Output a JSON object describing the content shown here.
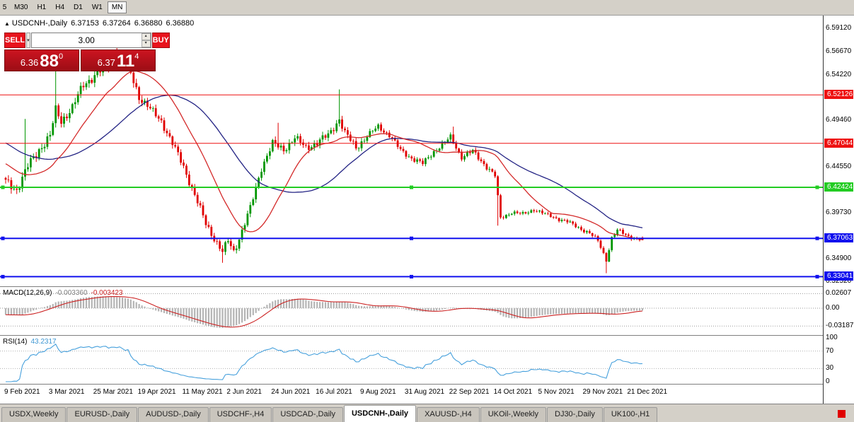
{
  "toolbar": {
    "periods": [
      {
        "label": "5",
        "active": false,
        "clipped": true
      },
      {
        "label": "M30",
        "active": false
      },
      {
        "label": "H1",
        "active": false
      },
      {
        "label": "H4",
        "active": false
      },
      {
        "label": "D1",
        "active": false
      },
      {
        "label": "W1",
        "active": false
      },
      {
        "label": "MN",
        "active": true
      }
    ]
  },
  "icons": {
    "direction_arrow": "▲",
    "dropdown_arrow": "▾",
    "spinner_up": "▴",
    "spinner_down": "▾"
  },
  "chart": {
    "header": {
      "symbol": "USDCNH-,Daily",
      "ohlc": [
        "6.37153",
        "6.37264",
        "6.36880",
        "6.36880"
      ]
    },
    "trade_panel": {
      "sell_label": "SELL",
      "buy_label": "BUY",
      "volume": "3.00",
      "sell_price": {
        "big": "6.36",
        "pips": "88",
        "point": "0"
      },
      "buy_price": {
        "big": "6.37",
        "pips": "11",
        "point": "4"
      }
    },
    "y_axis": {
      "min": 6.3203,
      "max": 6.6046,
      "ticks": [
        "6.59120",
        "6.56670",
        "6.54220",
        "6.49460",
        "6.44550",
        "6.39730",
        "6.34900",
        "6.32520"
      ]
    },
    "levels": [
      {
        "value": 6.52126,
        "label": "6.52126",
        "color": "#ee1111",
        "width": 1,
        "handle": false
      },
      {
        "value": 6.47044,
        "label": "6.47044",
        "color": "#ee1111",
        "width": 1,
        "handle": false
      },
      {
        "value": 6.42424,
        "label": "6.42424",
        "color": "#22cc22",
        "width": 2,
        "handle": true
      },
      {
        "value": 6.37063,
        "label": "6.37063",
        "color": "#1111ee",
        "width": 2,
        "handle": true
      },
      {
        "value": 6.33041,
        "label": "6.33041",
        "color": "#1111ee",
        "width": 2,
        "handle": true
      }
    ],
    "x_axis": [
      {
        "text": "9 Feb 2021",
        "index": 0
      },
      {
        "text": "3 Mar 2021",
        "index": 16
      },
      {
        "text": "25 Mar 2021",
        "index": 32
      },
      {
        "text": "19 Apr 2021",
        "index": 48
      },
      {
        "text": "11 May 2021",
        "index": 64
      },
      {
        "text": "2 Jun 2021",
        "index": 80
      },
      {
        "text": "24 Jun 2021",
        "index": 96
      },
      {
        "text": "16 Jul 2021",
        "index": 112
      },
      {
        "text": "9 Aug 2021",
        "index": 128
      },
      {
        "text": "31 Aug 2021",
        "index": 144
      },
      {
        "text": "22 Sep 2021",
        "index": 160
      },
      {
        "text": "14 Oct 2021",
        "index": 176
      },
      {
        "text": "5 Nov 2021",
        "index": 192
      },
      {
        "text": "29 Nov 2021",
        "index": 208
      },
      {
        "text": "21 Dec 2021",
        "index": 224
      }
    ],
    "chart_data": {
      "type": "candlestick",
      "title": "USDCNH- Daily",
      "candle_count": 230,
      "price_path": [
        [
          0,
          6.43
        ],
        [
          4,
          6.422
        ],
        [
          8,
          6.446
        ],
        [
          12,
          6.464
        ],
        [
          16,
          6.478
        ],
        [
          18,
          6.505
        ],
        [
          20,
          6.494
        ],
        [
          24,
          6.508
        ],
        [
          28,
          6.532
        ],
        [
          32,
          6.542
        ],
        [
          36,
          6.55
        ],
        [
          40,
          6.56
        ],
        [
          44,
          6.552
        ],
        [
          48,
          6.52
        ],
        [
          52,
          6.506
        ],
        [
          56,
          6.494
        ],
        [
          60,
          6.47
        ],
        [
          64,
          6.446
        ],
        [
          68,
          6.416
        ],
        [
          72,
          6.386
        ],
        [
          76,
          6.366
        ],
        [
          78,
          6.356
        ],
        [
          80,
          6.368
        ],
        [
          82,
          6.357
        ],
        [
          84,
          6.371
        ],
        [
          88,
          6.402
        ],
        [
          92,
          6.445
        ],
        [
          96,
          6.47
        ],
        [
          100,
          6.464
        ],
        [
          104,
          6.476
        ],
        [
          108,
          6.466
        ],
        [
          112,
          6.471
        ],
        [
          116,
          6.479
        ],
        [
          120,
          6.496
        ],
        [
          122,
          6.481
        ],
        [
          126,
          6.466
        ],
        [
          130,
          6.478
        ],
        [
          134,
          6.488
        ],
        [
          138,
          6.479
        ],
        [
          142,
          6.463
        ],
        [
          146,
          6.455
        ],
        [
          150,
          6.449
        ],
        [
          154,
          6.462
        ],
        [
          158,
          6.471
        ],
        [
          160,
          6.477
        ],
        [
          164,
          6.456
        ],
        [
          168,
          6.462
        ],
        [
          172,
          6.449
        ],
        [
          176,
          6.436
        ],
        [
          178,
          6.392
        ],
        [
          182,
          6.398
        ],
        [
          186,
          6.396
        ],
        [
          190,
          6.401
        ],
        [
          194,
          6.396
        ],
        [
          198,
          6.392
        ],
        [
          202,
          6.388
        ],
        [
          206,
          6.382
        ],
        [
          210,
          6.376
        ],
        [
          213,
          6.368
        ],
        [
          216,
          6.348
        ],
        [
          218,
          6.371
        ],
        [
          220,
          6.379
        ],
        [
          224,
          6.373
        ],
        [
          227,
          6.37
        ],
        [
          229,
          6.369
        ]
      ],
      "spikes": [
        {
          "i": 7,
          "h": 6.496
        },
        {
          "i": 18,
          "h": 6.565
        },
        {
          "i": 40,
          "h": 6.573
        },
        {
          "i": 44,
          "h": 6.561
        },
        {
          "i": 98,
          "h": 6.492
        },
        {
          "i": 120,
          "h": 6.527
        },
        {
          "i": 161,
          "h": 6.488
        },
        {
          "i": 78,
          "l": 6.345
        },
        {
          "i": 177,
          "l": 6.384
        },
        {
          "i": 216,
          "l": 6.334
        }
      ],
      "last_bar": {
        "o": 6.37153,
        "h": 6.37264,
        "l": 6.3688,
        "c": 6.3688
      },
      "up_color": "#009600",
      "down_color": "#e00000",
      "ma_fast": {
        "period": 20,
        "color": "#d42a2a"
      },
      "ma_slow": {
        "period": 45,
        "color": "#232384"
      }
    }
  },
  "macd": {
    "title": "MACD(12,26,9)",
    "value_main": "-0.003360",
    "value_signal": "-0.003423",
    "axis": [
      {
        "text": "0.02607",
        "value": 0.02607
      },
      {
        "text": "0.00",
        "value": 0
      },
      {
        "text": "-0.03187",
        "value": -0.03187
      }
    ],
    "range": [
      -0.048,
      0.038
    ],
    "histogram_color": "#b4b4b4",
    "signal_color": "#cc2222"
  },
  "rsi": {
    "title": "RSI(14)",
    "value": "43.2317",
    "axis": [
      {
        "text": "100",
        "value": 100
      },
      {
        "text": "70",
        "value": 70
      },
      {
        "text": "30",
        "value": 30
      },
      {
        "text": "0",
        "value": 0
      }
    ],
    "levels": [
      70,
      30
    ],
    "color": "#46a0dc"
  },
  "tab_bar": {
    "indicator_color": "#e00000",
    "tabs": [
      {
        "label": "USDX,Weekly",
        "active": false
      },
      {
        "label": "EURUSD-,Daily",
        "active": false
      },
      {
        "label": "AUDUSD-,Daily",
        "active": false
      },
      {
        "label": "USDCHF-,H4",
        "active": false
      },
      {
        "label": "USDCAD-,Daily",
        "active": false
      },
      {
        "label": "USDCNH-,Daily",
        "active": true
      },
      {
        "label": "XAUUSD-,H4",
        "active": false
      },
      {
        "label": "UKOil-,Weekly",
        "active": false
      },
      {
        "label": "DJ30-,Daily",
        "active": false
      },
      {
        "label": "UK100-,H1",
        "active": false
      }
    ]
  }
}
